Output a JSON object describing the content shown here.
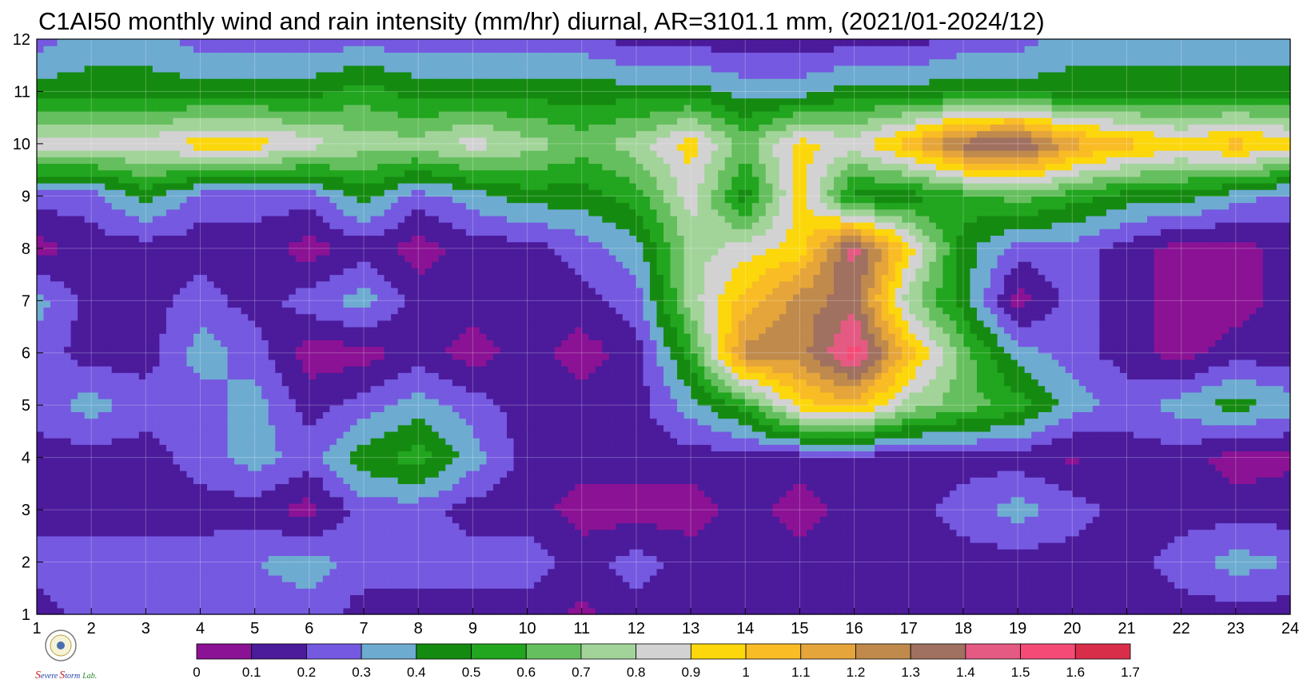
{
  "chart_data": {
    "type": "heatmap",
    "title": "C1AI50 monthly wind and rain intensity (mm/hr) diurnal, AR=3101.1 mm, (2021/01-2024/12)",
    "xlabel": "",
    "ylabel": "",
    "x": [
      1,
      2,
      3,
      4,
      5,
      6,
      7,
      8,
      9,
      10,
      11,
      12,
      13,
      14,
      15,
      16,
      17,
      18,
      19,
      20,
      21,
      22,
      23,
      24
    ],
    "y": [
      1,
      2,
      3,
      4,
      5,
      6,
      7,
      8,
      9,
      10,
      11,
      12
    ],
    "xlim": [
      1,
      24
    ],
    "ylim": [
      1,
      12
    ],
    "x_tick_labels": [
      "1",
      "2",
      "3",
      "4",
      "5",
      "6",
      "7",
      "8",
      "9",
      "10",
      "11",
      "12",
      "13",
      "14",
      "15",
      "16",
      "17",
      "18",
      "19",
      "20",
      "21",
      "22",
      "23",
      "24"
    ],
    "y_tick_labels": [
      "1",
      "2",
      "3",
      "4",
      "5",
      "6",
      "7",
      "8",
      "9",
      "10",
      "11",
      "12"
    ],
    "grid": true,
    "values": [
      [
        0.15,
        0.25,
        0.25,
        0.25,
        0.25,
        0.25,
        0.15,
        0.15,
        0.15,
        0.15,
        0.08,
        0.15,
        0.15,
        0.15,
        0.15,
        0.15,
        0.15,
        0.15,
        0.15,
        0.15,
        0.15,
        0.15,
        0.15,
        0.15
      ],
      [
        0.25,
        0.25,
        0.25,
        0.25,
        0.3,
        0.35,
        0.25,
        0.25,
        0.25,
        0.25,
        0.15,
        0.25,
        0.15,
        0.15,
        0.15,
        0.15,
        0.15,
        0.15,
        0.15,
        0.15,
        0.15,
        0.25,
        0.35,
        0.3
      ],
      [
        0.15,
        0.15,
        0.15,
        0.15,
        0.15,
        0.05,
        0.25,
        0.25,
        0.15,
        0.15,
        0.05,
        0.05,
        0.05,
        0.15,
        0.05,
        0.15,
        0.15,
        0.25,
        0.35,
        0.25,
        0.15,
        0.15,
        0.15,
        0.15
      ],
      [
        0.15,
        0.15,
        0.15,
        0.25,
        0.35,
        0.25,
        0.45,
        0.55,
        0.35,
        0.15,
        0.15,
        0.15,
        0.15,
        0.15,
        0.15,
        0.15,
        0.15,
        0.15,
        0.15,
        0.08,
        0.15,
        0.15,
        0.05,
        0.08
      ],
      [
        0.25,
        0.35,
        0.25,
        0.25,
        0.35,
        0.15,
        0.25,
        0.35,
        0.25,
        0.15,
        0.15,
        0.15,
        0.35,
        0.55,
        0.95,
        1.05,
        0.75,
        0.65,
        0.55,
        0.35,
        0.25,
        0.35,
        0.45,
        0.35
      ],
      [
        0.25,
        0.15,
        0.15,
        0.35,
        0.25,
        0.05,
        0.05,
        0.15,
        0.05,
        0.15,
        0.05,
        0.15,
        0.55,
        1.25,
        1.25,
        1.55,
        1.05,
        0.65,
        0.35,
        0.25,
        0.15,
        0.05,
        0.15,
        0.15
      ],
      [
        0.35,
        0.15,
        0.15,
        0.25,
        0.15,
        0.25,
        0.35,
        0.15,
        0.15,
        0.15,
        0.15,
        0.25,
        0.75,
        1.05,
        1.25,
        1.35,
        0.75,
        0.45,
        0.05,
        0.25,
        0.15,
        0.05,
        0.05,
        0.15
      ],
      [
        0.05,
        0.15,
        0.15,
        0.15,
        0.15,
        0.05,
        0.15,
        0.05,
        0.15,
        0.15,
        0.25,
        0.35,
        0.75,
        0.85,
        0.95,
        1.45,
        0.95,
        0.45,
        0.25,
        0.25,
        0.15,
        0.05,
        0.05,
        0.15
      ],
      [
        0.25,
        0.25,
        0.45,
        0.25,
        0.25,
        0.25,
        0.45,
        0.25,
        0.35,
        0.45,
        0.45,
        0.55,
        0.85,
        0.45,
        0.95,
        0.45,
        0.45,
        0.55,
        0.65,
        0.55,
        0.45,
        0.45,
        0.35,
        0.25
      ],
      [
        0.85,
        0.85,
        0.85,
        0.95,
        0.95,
        0.85,
        0.75,
        0.75,
        0.85,
        0.75,
        0.65,
        0.75,
        0.95,
        0.65,
        0.95,
        0.85,
        1.05,
        1.35,
        1.45,
        1.15,
        1.05,
        0.95,
        1.05,
        0.95
      ],
      [
        0.45,
        0.45,
        0.45,
        0.45,
        0.45,
        0.45,
        0.55,
        0.45,
        0.45,
        0.45,
        0.45,
        0.45,
        0.45,
        0.35,
        0.35,
        0.45,
        0.45,
        0.45,
        0.45,
        0.45,
        0.45,
        0.45,
        0.45,
        0.45
      ],
      [
        0.25,
        0.35,
        0.35,
        0.25,
        0.25,
        0.25,
        0.25,
        0.25,
        0.25,
        0.25,
        0.25,
        0.15,
        0.15,
        0.15,
        0.15,
        0.15,
        0.15,
        0.25,
        0.25,
        0.35,
        0.35,
        0.35,
        0.35,
        0.35
      ]
    ],
    "colorbar": {
      "levels": [
        0,
        0.1,
        0.2,
        0.3,
        0.4,
        0.5,
        0.6,
        0.7,
        0.8,
        0.9,
        1,
        1.1,
        1.2,
        1.3,
        1.4,
        1.5,
        1.6,
        1.7
      ],
      "tick_labels": [
        "0",
        "0.1",
        "0.2",
        "0.3",
        "0.4",
        "0.5",
        "0.6",
        "0.7",
        "0.8",
        "0.9",
        "1",
        "1.1",
        "1.2",
        "1.3",
        "1.4",
        "1.5",
        "1.6",
        "1.7"
      ],
      "colors": [
        "#8b1294",
        "#4b1b9b",
        "#7559e0",
        "#6eabd1",
        "#158a10",
        "#22a51f",
        "#66bf5f",
        "#a2d49a",
        "#d2d2d2",
        "#fcd70b",
        "#f9bc25",
        "#e5a53a",
        "#bf8a4c",
        "#a07060",
        "#e45a82",
        "#f54a75",
        "#d92e4a"
      ]
    },
    "contour_line_color": "#f0a838"
  },
  "logo": {
    "text_s1": "S",
    "text_evere": "evere",
    "text_s2": "S",
    "text_torm": "torm",
    "text_lab": "Lab."
  }
}
